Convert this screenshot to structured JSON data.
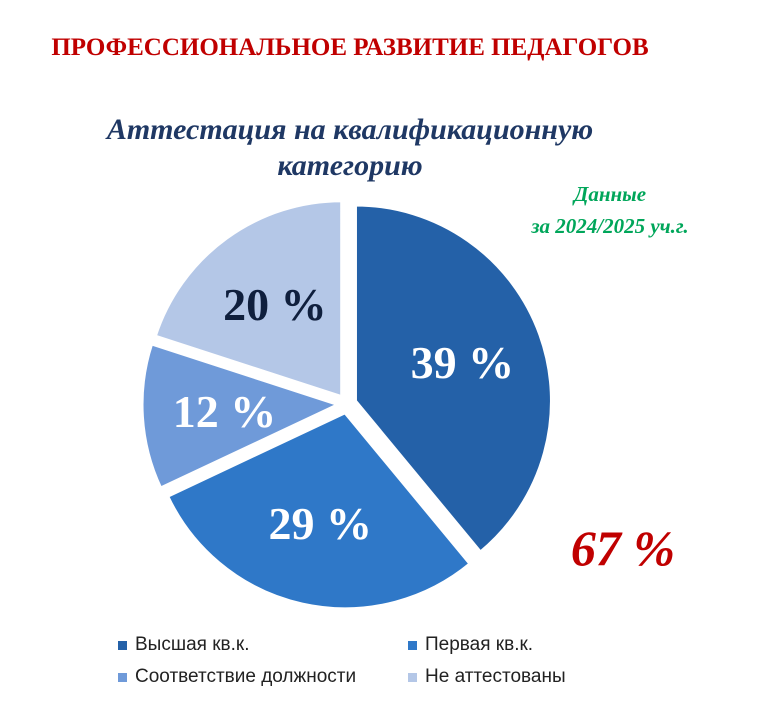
{
  "chart_data": {
    "type": "pie",
    "title": "ПРОФЕССИОНАЛЬНОЕ РАЗВИТИЕ ПЕДАГОГОВ",
    "subtitle": "Аттестация на квалификационную категорию",
    "note_line1": "Данные",
    "note_line2": "за 2024/2025 уч.г.",
    "summary_label": "67 %",
    "legend_position": "bottom",
    "categories": [
      "Высшая кв.к.",
      "Первая кв.к.",
      "Соответствие должности",
      "Не аттестованы"
    ],
    "values": [
      39,
      29,
      12,
      20
    ],
    "value_labels": [
      "39 %",
      "29 %",
      "12 %",
      "20 %"
    ],
    "colors": [
      "#2461a8",
      "#2f78c8",
      "#6f9ad9",
      "#b4c7e7"
    ],
    "label_colors": [
      "#ffffff",
      "#ffffff",
      "#ffffff",
      "#0f1f3d"
    ]
  }
}
